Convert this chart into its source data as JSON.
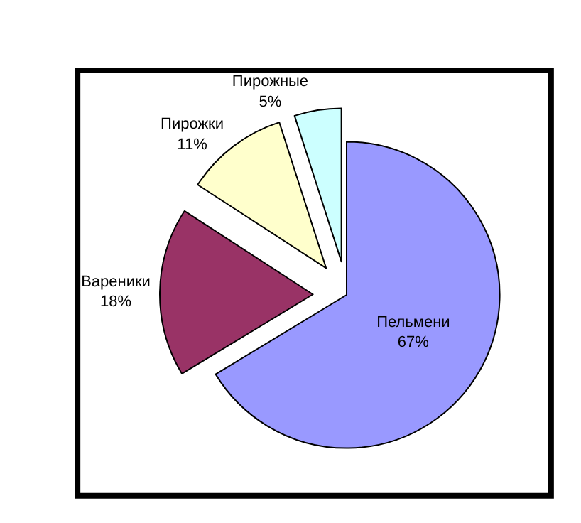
{
  "chart_data": {
    "type": "pie",
    "categories": [
      "Пельмени",
      "Вареники",
      "Пирожки",
      "Пирожные"
    ],
    "values": [
      67,
      18,
      11,
      5
    ],
    "value_labels": [
      "67%",
      "18%",
      "11%",
      "5%"
    ],
    "colors": [
      "#9999ff",
      "#993366",
      "#ffffcc",
      "#ccffff"
    ],
    "legend": false
  }
}
